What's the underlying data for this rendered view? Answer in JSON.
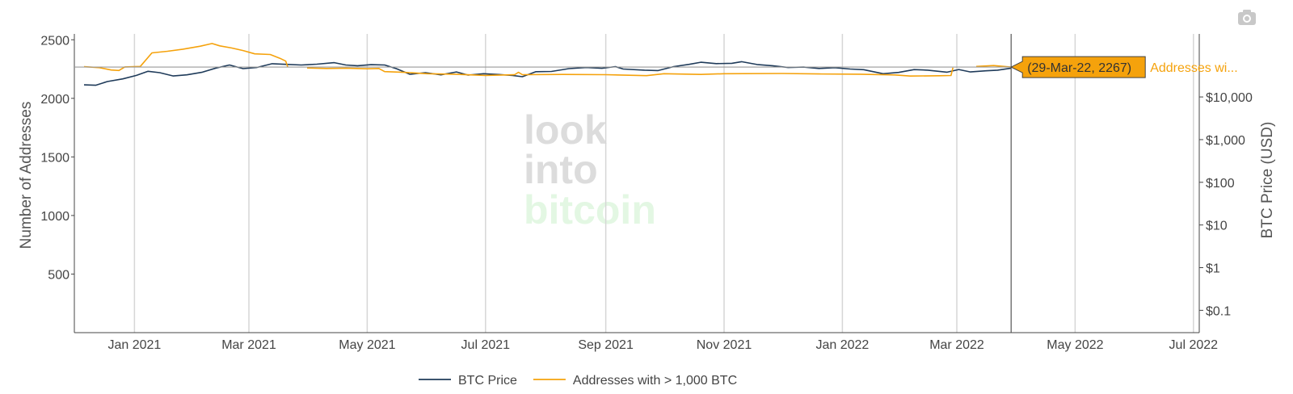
{
  "toolbar": {
    "camera_icon": "camera-icon"
  },
  "watermark": {
    "line1": "look",
    "line2": "into",
    "line3": "bitcoin",
    "colors": {
      "line1": "#dcdcdc",
      "line2": "#dcdcdc",
      "line3": "#e3f7e3"
    }
  },
  "hover": {
    "box_text": "(29-Mar-22, 2267)",
    "series_text": "Addresses wi...",
    "box_color": "#f5a20c",
    "series_color": "#f5a20c",
    "date": "2022-03-29",
    "value": 2267
  },
  "chart_data": {
    "type": "line",
    "title": "",
    "xlabel": "",
    "ylabel": "Number of Addresses",
    "y2label": "BTC Price (USD)",
    "x_range": [
      "2020-12-01",
      "2022-07-04"
    ],
    "x_ticks": [
      {
        "date": "2021-01-01",
        "label": "Jan 2021"
      },
      {
        "date": "2021-03-01",
        "label": "Mar 2021"
      },
      {
        "date": "2021-05-01",
        "label": "May 2021"
      },
      {
        "date": "2021-07-01",
        "label": "Jul 2021"
      },
      {
        "date": "2021-09-01",
        "label": "Sep 2021"
      },
      {
        "date": "2021-11-01",
        "label": "Nov 2021"
      },
      {
        "date": "2022-01-01",
        "label": "Jan 2022"
      },
      {
        "date": "2022-03-01",
        "label": "Mar 2022"
      },
      {
        "date": "2022-05-01",
        "label": "May 2022"
      },
      {
        "date": "2022-07-01",
        "label": "Jul 2022"
      }
    ],
    "ylim": [
      0,
      2550
    ],
    "y_ticks": [
      500,
      1000,
      1500,
      2000,
      2500
    ],
    "y_tick_labels": [
      "500",
      "1000",
      "1500",
      "2000",
      "2500"
    ],
    "y2_scale": "log",
    "y2lim": [
      0.03,
      300000
    ],
    "y2_ticks": [
      0.1,
      1,
      10,
      100,
      1000,
      10000
    ],
    "y2_tick_labels": [
      "$0.1",
      "$1",
      "$10",
      "$100",
      "$1,000",
      "$10,000"
    ],
    "grid": "vertical",
    "legend_position": "bottom-center",
    "series": [
      {
        "name": "BTC Price",
        "color": "#1f3b5a",
        "axis": "y2",
        "points": [
          [
            "2020-12-06",
            19200
          ],
          [
            "2020-12-12",
            18800
          ],
          [
            "2020-12-18",
            23000
          ],
          [
            "2020-12-26",
            26500
          ],
          [
            "2021-01-02",
            32000
          ],
          [
            "2021-01-08",
            40000
          ],
          [
            "2021-01-14",
            37000
          ],
          [
            "2021-01-21",
            31000
          ],
          [
            "2021-01-28",
            33000
          ],
          [
            "2021-02-05",
            38000
          ],
          [
            "2021-02-12",
            47500
          ],
          [
            "2021-02-19",
            56000
          ],
          [
            "2021-02-26",
            46000
          ],
          [
            "2021-03-05",
            49000
          ],
          [
            "2021-03-13",
            60000
          ],
          [
            "2021-03-20",
            58000
          ],
          [
            "2021-03-28",
            56000
          ],
          [
            "2021-04-05",
            58500
          ],
          [
            "2021-04-14",
            63500
          ],
          [
            "2021-04-20",
            56000
          ],
          [
            "2021-04-26",
            54000
          ],
          [
            "2021-05-03",
            57000
          ],
          [
            "2021-05-10",
            56000
          ],
          [
            "2021-05-16",
            46000
          ],
          [
            "2021-05-23",
            34000
          ],
          [
            "2021-05-31",
            37000
          ],
          [
            "2021-06-08",
            33000
          ],
          [
            "2021-06-16",
            38500
          ],
          [
            "2021-06-22",
            32500
          ],
          [
            "2021-06-30",
            35000
          ],
          [
            "2021-07-08",
            33500
          ],
          [
            "2021-07-15",
            31800
          ],
          [
            "2021-07-20",
            29800
          ],
          [
            "2021-07-27",
            39000
          ],
          [
            "2021-08-04",
            39500
          ],
          [
            "2021-08-13",
            46000
          ],
          [
            "2021-08-22",
            49000
          ],
          [
            "2021-08-30",
            47000
          ],
          [
            "2021-09-06",
            51500
          ],
          [
            "2021-09-10",
            45000
          ],
          [
            "2021-09-21",
            42500
          ],
          [
            "2021-09-28",
            41500
          ],
          [
            "2021-10-06",
            51500
          ],
          [
            "2021-10-14",
            58000
          ],
          [
            "2021-10-20",
            65000
          ],
          [
            "2021-10-28",
            60500
          ],
          [
            "2021-11-05",
            61500
          ],
          [
            "2021-11-10",
            67000
          ],
          [
            "2021-11-18",
            57500
          ],
          [
            "2021-11-26",
            54000
          ],
          [
            "2021-12-04",
            49000
          ],
          [
            "2021-12-12",
            50000
          ],
          [
            "2021-12-20",
            46500
          ],
          [
            "2021-12-28",
            48500
          ],
          [
            "2022-01-05",
            45000
          ],
          [
            "2022-01-12",
            43500
          ],
          [
            "2022-01-22",
            35000
          ],
          [
            "2022-01-30",
            37500
          ],
          [
            "2022-02-07",
            43800
          ],
          [
            "2022-02-14",
            42500
          ],
          [
            "2022-02-24",
            38000
          ],
          [
            "2022-03-02",
            44000
          ],
          [
            "2022-03-08",
            38500
          ],
          [
            "2022-03-16",
            41000
          ],
          [
            "2022-03-22",
            42500
          ],
          [
            "2022-03-29",
            47300
          ]
        ]
      },
      {
        "name": "Addresses with > 1,000 BTC",
        "color": "#f5a20c",
        "axis": "y",
        "segments": [
          [
            [
              "2020-12-06",
              2270
            ],
            [
              "2020-12-14",
              2262
            ],
            [
              "2020-12-20",
              2242
            ],
            [
              "2020-12-24",
              2238
            ],
            [
              "2020-12-27",
              2268
            ],
            [
              "2021-01-04",
              2272
            ],
            [
              "2021-01-10",
              2388
            ],
            [
              "2021-01-18",
              2402
            ],
            [
              "2021-01-26",
              2420
            ],
            [
              "2021-02-04",
              2445
            ],
            [
              "2021-02-10",
              2468
            ],
            [
              "2021-02-14",
              2448
            ],
            [
              "2021-02-20",
              2430
            ],
            [
              "2021-02-26",
              2408
            ],
            [
              "2021-03-04",
              2380
            ],
            [
              "2021-03-12",
              2374
            ],
            [
              "2021-03-17",
              2342
            ],
            [
              "2021-03-20",
              2318
            ],
            [
              "2021-03-21",
              2268
            ]
          ],
          [
            [
              "2021-03-31",
              2259
            ],
            [
              "2021-04-10",
              2255
            ],
            [
              "2021-04-20",
              2258
            ],
            [
              "2021-05-01",
              2252
            ],
            [
              "2021-05-07",
              2255
            ],
            [
              "2021-05-10",
              2228
            ],
            [
              "2021-05-20",
              2222
            ],
            [
              "2021-06-01",
              2210
            ],
            [
              "2021-06-15",
              2206
            ],
            [
              "2021-07-01",
              2196
            ],
            [
              "2021-07-16",
              2202
            ],
            [
              "2021-07-18",
              2222
            ],
            [
              "2021-07-20",
              2202
            ],
            [
              "2021-08-10",
              2204
            ],
            [
              "2021-09-01",
              2202
            ],
            [
              "2021-09-22",
              2194
            ],
            [
              "2021-10-01",
              2210
            ],
            [
              "2021-10-20",
              2204
            ],
            [
              "2021-11-01",
              2210
            ],
            [
              "2021-12-01",
              2212
            ],
            [
              "2021-12-20",
              2208
            ],
            [
              "2022-01-10",
              2206
            ],
            [
              "2022-01-28",
              2200
            ],
            [
              "2022-02-05",
              2190
            ],
            [
              "2022-02-20",
              2193
            ],
            [
              "2022-02-26",
              2195
            ],
            [
              "2022-02-27",
              2262
            ]
          ],
          [
            [
              "2022-03-11",
              2272
            ],
            [
              "2022-03-20",
              2280
            ],
            [
              "2022-03-29",
              2267
            ]
          ]
        ]
      }
    ]
  }
}
